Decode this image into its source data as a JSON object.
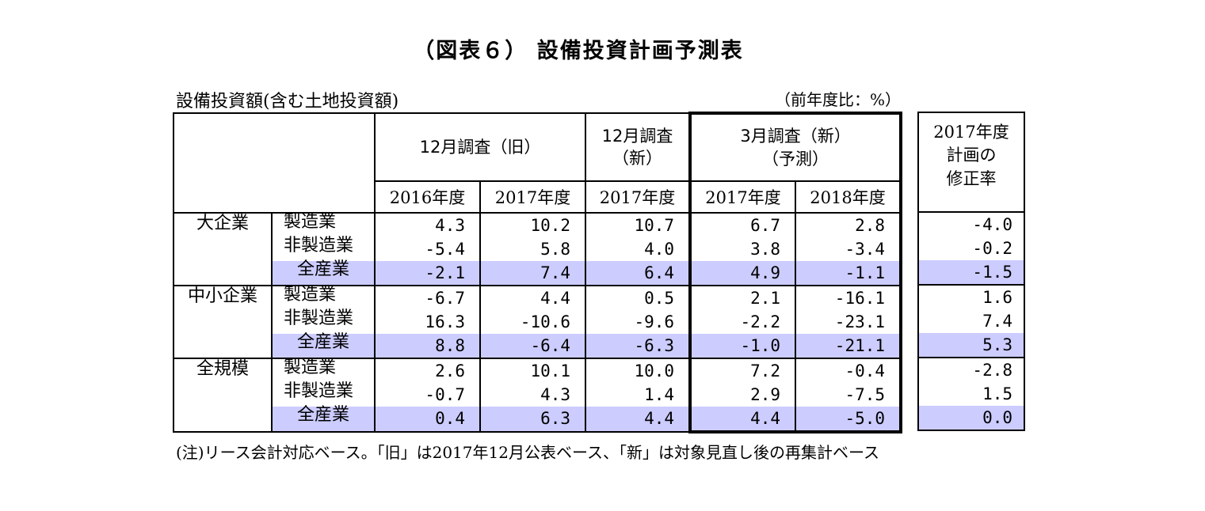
{
  "title": "（図表６） 設備投資計画予測表",
  "subtitle": "設備投資額(含む土地投資額)",
  "unit": "（前年度比：%）",
  "note": "(注)リース会計対応ベース。「旧」は2017年12月公表ベース、「新」は対象見直し後の再集計ベース",
  "headers": {
    "survey_old": "12月調査（旧）",
    "survey_new_line1": "12月調査",
    "survey_new_line2": "（新）",
    "survey_mar_line1": "3月調査（新）",
    "survey_mar_line2": "（予測）",
    "revision_line1": "2017年度",
    "revision_line2": "計画の",
    "revision_line3": "修正率",
    "years": [
      "2016年度",
      "2017年度",
      "2017年度",
      "2017年度",
      "2018年度"
    ]
  },
  "chart_data": {
    "type": "table",
    "columns": [
      "12月調査（旧） 2016年度",
      "12月調査（旧） 2017年度",
      "12月調査（新） 2017年度",
      "3月調査（新）（予測） 2017年度",
      "3月調査（新）（予測） 2018年度",
      "2017年度計画の修正率"
    ],
    "groups": [
      {
        "name": "大企業",
        "rows": [
          {
            "label": "製造業",
            "values": [
              "4.3",
              "10.2",
              "10.7",
              "6.7",
              "2.8"
            ],
            "revision": "-4.0"
          },
          {
            "label": "非製造業",
            "values": [
              "-5.4",
              "5.8",
              "4.0",
              "3.8",
              "-3.4"
            ],
            "revision": "-0.2"
          },
          {
            "label": "全産業",
            "values": [
              "-2.1",
              "7.4",
              "6.4",
              "4.9",
              "-1.1"
            ],
            "revision": "-1.5"
          }
        ]
      },
      {
        "name": "中小企業",
        "rows": [
          {
            "label": "製造業",
            "values": [
              "-6.7",
              "4.4",
              "0.5",
              "2.1",
              "-16.1"
            ],
            "revision": "1.6"
          },
          {
            "label": "非製造業",
            "values": [
              "16.3",
              "-10.6",
              "-9.6",
              "-2.2",
              "-23.1"
            ],
            "revision": "7.4"
          },
          {
            "label": "全産業",
            "values": [
              "8.8",
              "-6.4",
              "-6.3",
              "-1.0",
              "-21.1"
            ],
            "revision": "5.3"
          }
        ]
      },
      {
        "name": "全規模",
        "rows": [
          {
            "label": "製造業",
            "values": [
              "2.6",
              "10.1",
              "10.0",
              "7.2",
              "-0.4"
            ],
            "revision": "-2.8"
          },
          {
            "label": "非製造業",
            "values": [
              "-0.7",
              "4.3",
              "1.4",
              "2.9",
              "-7.5"
            ],
            "revision": "1.5"
          },
          {
            "label": "全産業",
            "values": [
              "0.4",
              "6.3",
              "4.4",
              "4.4",
              "-5.0"
            ],
            "revision": "0.0"
          }
        ]
      }
    ]
  },
  "colors": {
    "total_row": "#ccccff",
    "border": "#000000"
  }
}
